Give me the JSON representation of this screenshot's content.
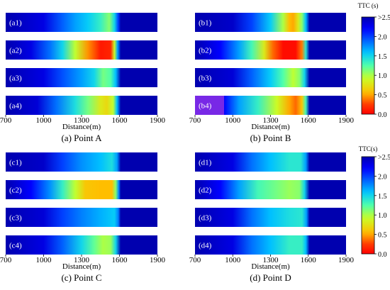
{
  "figure": {
    "panels": [
      {
        "caption": "(a) Point A",
        "xlabel": "Distance(m)",
        "xticks": [
          "700",
          "1000",
          "1300",
          "1600",
          "1900"
        ],
        "rows": [
          {
            "label": "(a1)",
            "stops": [
              [
                700,
                2.55
              ],
              [
                1000,
                2.3
              ],
              [
                1150,
                1.9
              ],
              [
                1250,
                1.7
              ],
              [
                1350,
                1.55
              ],
              [
                1450,
                1.35
              ],
              [
                1520,
                1.1
              ],
              [
                1560,
                1.5
              ],
              [
                1590,
                2.0
              ],
              [
                1610,
                2.55
              ],
              [
                1900,
                2.55
              ]
            ]
          },
          {
            "label": "(a2)",
            "stops": [
              [
                700,
                2.55
              ],
              [
                900,
                2.3
              ],
              [
                1050,
                1.85
              ],
              [
                1150,
                1.5
              ],
              [
                1250,
                0.95
              ],
              [
                1350,
                0.45
              ],
              [
                1450,
                0.1
              ],
              [
                1530,
                0.15
              ],
              [
                1560,
                0.9
              ],
              [
                1585,
                1.7
              ],
              [
                1610,
                2.55
              ],
              [
                1900,
                2.55
              ]
            ]
          },
          {
            "label": "(a3)",
            "stops": [
              [
                700,
                2.55
              ],
              [
                1000,
                2.3
              ],
              [
                1150,
                1.95
              ],
              [
                1300,
                1.7
              ],
              [
                1400,
                1.5
              ],
              [
                1470,
                1.15
              ],
              [
                1530,
                1.25
              ],
              [
                1570,
                1.6
              ],
              [
                1610,
                2.55
              ],
              [
                1900,
                2.55
              ]
            ]
          },
          {
            "label": "(a4)",
            "stops": [
              [
                700,
                2.55
              ],
              [
                950,
                2.35
              ],
              [
                1100,
                1.85
              ],
              [
                1250,
                1.45
              ],
              [
                1350,
                1.15
              ],
              [
                1450,
                0.8
              ],
              [
                1500,
                0.7
              ],
              [
                1550,
                0.95
              ],
              [
                1580,
                1.6
              ],
              [
                1610,
                2.55
              ],
              [
                1900,
                2.55
              ]
            ]
          }
        ]
      },
      {
        "caption": "(b) Point B",
        "xlabel": "Distance(m)",
        "xticks": [
          "700",
          "1000",
          "1300",
          "1600",
          "1900"
        ],
        "rows": [
          {
            "label": "(b1)",
            "stops": [
              [
                700,
                2.55
              ],
              [
                1000,
                2.4
              ],
              [
                1150,
                2.0
              ],
              [
                1300,
                1.55
              ],
              [
                1400,
                1.0
              ],
              [
                1450,
                0.55
              ],
              [
                1480,
                0.5
              ],
              [
                1520,
                0.8
              ],
              [
                1550,
                1.1
              ],
              [
                1580,
                1.6
              ],
              [
                1610,
                2.55
              ],
              [
                1900,
                2.55
              ]
            ]
          },
          {
            "label": "(b2)",
            "stops": [
              [
                700,
                2.55
              ],
              [
                900,
                2.2
              ],
              [
                1050,
                1.7
              ],
              [
                1150,
                1.3
              ],
              [
                1250,
                0.8
              ],
              [
                1320,
                0.35
              ],
              [
                1400,
                0.05
              ],
              [
                1500,
                0.05
              ],
              [
                1550,
                0.4
              ],
              [
                1580,
                1.4
              ],
              [
                1610,
                2.55
              ],
              [
                1900,
                2.55
              ]
            ]
          },
          {
            "label": "(b3)",
            "stops": [
              [
                700,
                2.55
              ],
              [
                1000,
                2.35
              ],
              [
                1150,
                1.9
              ],
              [
                1300,
                1.55
              ],
              [
                1400,
                1.25
              ],
              [
                1480,
                0.95
              ],
              [
                1530,
                1.1
              ],
              [
                1570,
                1.5
              ],
              [
                1610,
                2.55
              ],
              [
                1900,
                2.55
              ]
            ]
          },
          {
            "label": "(b4)",
            "stops": [
              [
                700,
                2.6
              ],
              [
                930,
                2.6
              ],
              [
                931,
                2.2
              ],
              [
                1050,
                1.7
              ],
              [
                1200,
                1.35
              ],
              [
                1350,
                0.9
              ],
              [
                1450,
                0.5
              ],
              [
                1500,
                0.35
              ],
              [
                1550,
                0.6
              ],
              [
                1580,
                1.3
              ],
              [
                1610,
                2.55
              ],
              [
                1900,
                2.55
              ]
            ]
          }
        ]
      },
      {
        "caption": "(c) Point C",
        "xlabel": "Distance(m)",
        "xticks": [
          "700",
          "1000",
          "1300",
          "1600",
          "1900"
        ],
        "rows": [
          {
            "label": "(c1)",
            "stops": [
              [
                700,
                2.55
              ],
              [
                1000,
                2.4
              ],
              [
                1150,
                2.0
              ],
              [
                1300,
                1.75
              ],
              [
                1450,
                1.6
              ],
              [
                1540,
                1.45
              ],
              [
                1580,
                1.7
              ],
              [
                1610,
                2.55
              ],
              [
                1900,
                2.55
              ]
            ]
          },
          {
            "label": "(c2)",
            "stops": [
              [
                700,
                2.55
              ],
              [
                900,
                2.2
              ],
              [
                1050,
                1.75
              ],
              [
                1150,
                1.35
              ],
              [
                1250,
                0.95
              ],
              [
                1330,
                0.6
              ],
              [
                1450,
                0.55
              ],
              [
                1540,
                0.55
              ],
              [
                1570,
                1.1
              ],
              [
                1595,
                1.8
              ],
              [
                1610,
                2.55
              ],
              [
                1900,
                2.55
              ]
            ]
          },
          {
            "label": "(c3)",
            "stops": [
              [
                700,
                2.55
              ],
              [
                1000,
                2.35
              ],
              [
                1150,
                2.0
              ],
              [
                1300,
                1.8
              ],
              [
                1450,
                1.65
              ],
              [
                1560,
                1.55
              ],
              [
                1590,
                1.8
              ],
              [
                1610,
                2.55
              ],
              [
                1900,
                2.55
              ]
            ]
          },
          {
            "label": "(c4)",
            "stops": [
              [
                700,
                2.55
              ],
              [
                1000,
                2.3
              ],
              [
                1150,
                1.9
              ],
              [
                1300,
                1.5
              ],
              [
                1400,
                1.2
              ],
              [
                1470,
                1.0
              ],
              [
                1530,
                1.05
              ],
              [
                1570,
                1.5
              ],
              [
                1610,
                2.55
              ],
              [
                1900,
                2.55
              ]
            ]
          }
        ]
      },
      {
        "caption": "(d) Point D",
        "xlabel": "Distance(m)",
        "xticks": [
          "700",
          "1000",
          "1300",
          "1600",
          "1900"
        ],
        "rows": [
          {
            "label": "(d1)",
            "stops": [
              [
                700,
                2.55
              ],
              [
                1000,
                2.3
              ],
              [
                1150,
                1.85
              ],
              [
                1300,
                1.6
              ],
              [
                1450,
                1.4
              ],
              [
                1540,
                1.4
              ],
              [
                1580,
                1.7
              ],
              [
                1610,
                2.55
              ],
              [
                1900,
                2.55
              ]
            ]
          },
          {
            "label": "(d2)",
            "stops": [
              [
                700,
                2.55
              ],
              [
                900,
                2.2
              ],
              [
                1050,
                1.7
              ],
              [
                1200,
                1.3
              ],
              [
                1350,
                1.15
              ],
              [
                1450,
                1.05
              ],
              [
                1530,
                1.1
              ],
              [
                1570,
                1.5
              ],
              [
                1610,
                2.55
              ],
              [
                1900,
                2.55
              ]
            ]
          },
          {
            "label": "(d3)",
            "stops": [
              [
                700,
                2.55
              ],
              [
                1000,
                2.3
              ],
              [
                1150,
                1.85
              ],
              [
                1300,
                1.6
              ],
              [
                1450,
                1.45
              ],
              [
                1550,
                1.4
              ],
              [
                1585,
                1.7
              ],
              [
                1610,
                2.55
              ],
              [
                1900,
                2.55
              ]
            ]
          },
          {
            "label": "(d4)",
            "stops": [
              [
                700,
                2.55
              ],
              [
                1000,
                2.3
              ],
              [
                1150,
                1.85
              ],
              [
                1300,
                1.6
              ],
              [
                1450,
                1.35
              ],
              [
                1550,
                1.35
              ],
              [
                1580,
                1.6
              ],
              [
                1610,
                2.55
              ],
              [
                1900,
                2.55
              ]
            ]
          }
        ]
      }
    ],
    "colorbars": [
      {
        "title": "TTC (s)",
        "ticks": [
          ">2.5",
          "2.0",
          "1.5",
          "1.0",
          "0.5",
          "0.0"
        ]
      },
      {
        "title": "TTC(s)",
        "ticks": [
          ">2.5",
          "2.0",
          "1.5",
          "1.0",
          "0.5",
          "0.0"
        ]
      }
    ]
  },
  "chart_data": [
    {
      "type": "heatmap",
      "title": "(a) Point A",
      "xlabel": "Distance(m)",
      "ylabel": "",
      "xlim": [
        700,
        1900
      ],
      "value_range": [
        0,
        2.5
      ],
      "colorbar_label": "TTC (s)",
      "rows": [
        "(a1)",
        "(a2)",
        "(a3)",
        "(a4)"
      ]
    },
    {
      "type": "heatmap",
      "title": "(b) Point B",
      "xlabel": "Distance(m)",
      "ylabel": "",
      "xlim": [
        700,
        1900
      ],
      "value_range": [
        0,
        2.5
      ],
      "colorbar_label": "TTC (s)",
      "rows": [
        "(b1)",
        "(b2)",
        "(b3)",
        "(b4)"
      ]
    },
    {
      "type": "heatmap",
      "title": "(c) Point C",
      "xlabel": "Distance(m)",
      "ylabel": "",
      "xlim": [
        700,
        1900
      ],
      "value_range": [
        0,
        2.5
      ],
      "colorbar_label": "TTC(s)",
      "rows": [
        "(c1)",
        "(c2)",
        "(c3)",
        "(c4)"
      ]
    },
    {
      "type": "heatmap",
      "title": "(d) Point D",
      "xlabel": "Distance(m)",
      "ylabel": "",
      "xlim": [
        700,
        1900
      ],
      "value_range": [
        0,
        2.5
      ],
      "colorbar_label": "TTC(s)",
      "rows": [
        "(d1)",
        "(d2)",
        "(d3)",
        "(d4)"
      ]
    }
  ]
}
